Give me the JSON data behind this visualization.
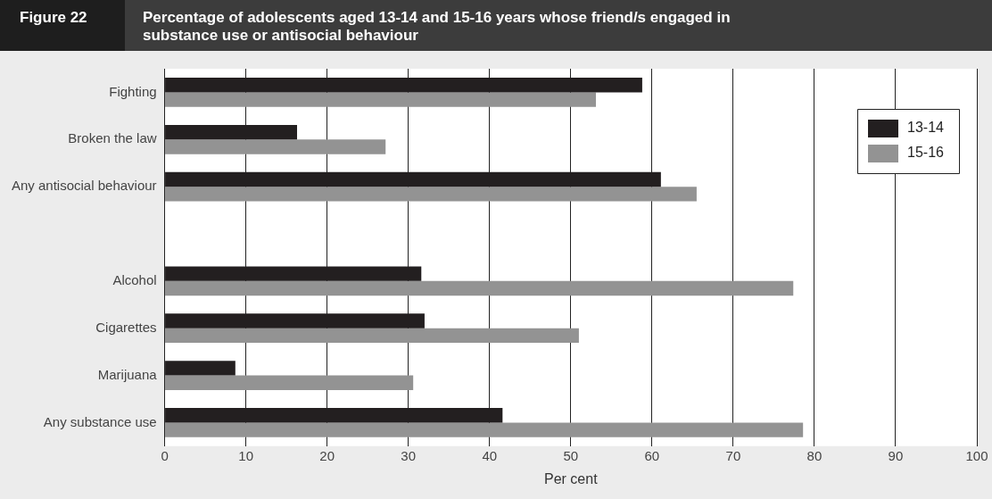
{
  "chart_data": {
    "type": "bar",
    "orientation": "horizontal",
    "title": "Percentage of adolescents aged 13-14 and 15-16 years whose friend/s engaged in substance use or antisocial behaviour",
    "annotations": [
      "Figure 22"
    ],
    "xlabel": "Per cent",
    "categories": [
      "Fighting",
      "Broken the law",
      "Any antisocial behaviour",
      null,
      "Alcohol",
      "Cigarettes",
      "Marijuana",
      "Any substance use"
    ],
    "series": [
      {
        "name": "13-14",
        "color": "#231f20",
        "values": [
          58.8,
          16.3,
          61.1,
          null,
          31.6,
          32,
          8.7,
          41.6
        ]
      },
      {
        "name": "15-16",
        "color": "#939393",
        "values": [
          53.1,
          27.2,
          65.5,
          null,
          77.4,
          51,
          30.6,
          78.6
        ]
      }
    ],
    "xlim": [
      0,
      100
    ],
    "xticks": [
      0,
      10,
      20,
      30,
      40,
      50,
      60,
      70,
      80,
      90,
      100
    ],
    "grid": "x",
    "legend": "right"
  }
}
